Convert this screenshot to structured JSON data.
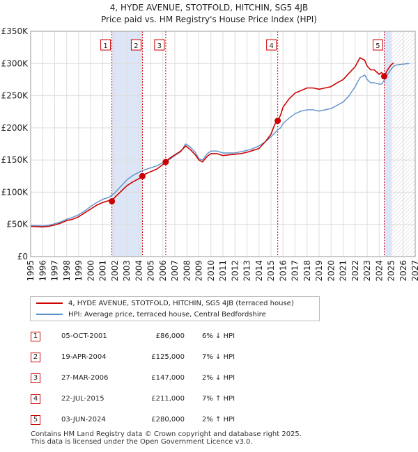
{
  "title_line1": "4, HYDE AVENUE, STOTFOLD, HITCHIN, SG5 4JB",
  "title_line2": "Price paid vs. HM Registry's House Price Index (HPI)",
  "chart_data": {
    "type": "line",
    "ylabel": "",
    "xlabel": "",
    "ylim": [
      0,
      350000
    ],
    "xlim": [
      1995,
      2027
    ],
    "y_ticks": [
      0,
      50000,
      100000,
      150000,
      200000,
      250000,
      300000,
      350000
    ],
    "y_tick_labels": [
      "£0",
      "£50K",
      "£100K",
      "£150K",
      "£200K",
      "£250K",
      "£300K",
      "£350K"
    ],
    "x_ticks": [
      1995,
      1996,
      1997,
      1998,
      1999,
      2000,
      2001,
      2002,
      2003,
      2004,
      2005,
      2006,
      2007,
      2008,
      2009,
      2010,
      2011,
      2012,
      2013,
      2014,
      2015,
      2016,
      2017,
      2018,
      2019,
      2020,
      2021,
      2022,
      2023,
      2024,
      2025,
      2026,
      2027
    ],
    "grid": true,
    "shaded_periods": [
      [
        2001.76,
        2004.3
      ],
      [
        2024.42,
        2025.0
      ]
    ],
    "forecast_start": 2025.0,
    "series": [
      {
        "name": "4, HYDE AVENUE, STOTFOLD, HITCHIN, SG5 4JB (terraced house)",
        "color": "#cc0000",
        "x": [
          1995,
          1995.5,
          1996,
          1996.5,
          1997,
          1997.5,
          1998,
          1998.5,
          1999,
          1999.5,
          2000,
          2000.5,
          2001,
          2001.5,
          2001.76,
          2002,
          2002.5,
          2003,
          2003.5,
          2004,
          2004.3,
          2004.5,
          2005,
          2005.5,
          2006,
          2006.24,
          2006.5,
          2007,
          2007.5,
          2007.9,
          2008.3,
          2008.7,
          2009,
          2009.3,
          2009.7,
          2010,
          2010.5,
          2011,
          2011.5,
          2012,
          2012.5,
          2013,
          2013.5,
          2014,
          2014.5,
          2015,
          2015.3,
          2015.56,
          2015.8,
          2016,
          2016.5,
          2017,
          2017.5,
          2018,
          2018.5,
          2019,
          2019.5,
          2020,
          2020.5,
          2021,
          2021.5,
          2022,
          2022.4,
          2022.8,
          2023,
          2023.3,
          2023.6,
          2024,
          2024.2,
          2024.42,
          2024.7,
          2025,
          2025.2
        ],
        "values": [
          47000,
          46500,
          46000,
          47000,
          49000,
          52000,
          56000,
          58000,
          62000,
          68000,
          74000,
          80000,
          84000,
          87000,
          86000,
          92000,
          101000,
          110000,
          116000,
          121000,
          125000,
          128000,
          132000,
          136000,
          143000,
          147000,
          152000,
          158000,
          164000,
          172000,
          166000,
          158000,
          150000,
          147000,
          156000,
          160000,
          160000,
          157000,
          158000,
          159000,
          160000,
          162000,
          165000,
          168000,
          178000,
          190000,
          205000,
          211000,
          220000,
          232000,
          245000,
          254000,
          258000,
          262000,
          262000,
          260000,
          262000,
          264000,
          270000,
          275000,
          285000,
          295000,
          309000,
          305000,
          296000,
          290000,
          290000,
          283000,
          286000,
          280000,
          290000,
          298000,
          301000
        ]
      },
      {
        "name": "HPI: Average price, terraced house, Central Bedfordshire",
        "color": "#5b8fc7",
        "x": [
          1995,
          1995.5,
          1996,
          1996.5,
          1997,
          1997.5,
          1998,
          1998.5,
          1999,
          1999.5,
          2000,
          2000.5,
          2001,
          2001.5,
          2002,
          2002.5,
          2003,
          2003.5,
          2004,
          2004.5,
          2005,
          2005.5,
          2006,
          2006.5,
          2007,
          2007.5,
          2007.9,
          2008.3,
          2008.7,
          2009,
          2009.3,
          2009.7,
          2010,
          2010.5,
          2011,
          2011.5,
          2012,
          2012.5,
          2013,
          2013.5,
          2014,
          2014.5,
          2015,
          2015.3,
          2015.56,
          2015.8,
          2016,
          2016.5,
          2017,
          2017.5,
          2018,
          2018.5,
          2019,
          2019.5,
          2020,
          2020.5,
          2021,
          2021.5,
          2022,
          2022.4,
          2022.8,
          2023,
          2023.3,
          2023.6,
          2024,
          2024.2,
          2024.42,
          2024.7,
          2025,
          2025.2,
          2025.5,
          2026,
          2026.5
        ],
        "values": [
          48000,
          48000,
          47500,
          48500,
          51000,
          54000,
          58000,
          61000,
          65000,
          71000,
          78000,
          84000,
          89000,
          92000,
          99000,
          109000,
          119000,
          126000,
          131000,
          135000,
          138000,
          141000,
          146000,
          150000,
          157000,
          163000,
          175000,
          170000,
          162000,
          152000,
          150000,
          160000,
          164000,
          164000,
          161000,
          161000,
          161000,
          163000,
          165000,
          168000,
          172000,
          178000,
          186000,
          192000,
          197000,
          200000,
          207000,
          215000,
          222000,
          226000,
          228000,
          228000,
          226000,
          228000,
          230000,
          235000,
          240000,
          250000,
          264000,
          278000,
          282000,
          275000,
          270000,
          270000,
          268000,
          268000,
          274000,
          283000,
          291000,
          296000,
          298000,
          299000,
          300000
        ]
      }
    ],
    "sales": [
      {
        "num": "1",
        "date": "05-OCT-2001",
        "x": 2001.76,
        "price": 86000,
        "price_label": "£86,000",
        "hpi": "6% ↓ HPI"
      },
      {
        "num": "2",
        "date": "19-APR-2004",
        "x": 2004.3,
        "price": 125000,
        "price_label": "£125,000",
        "hpi": "7% ↓ HPI"
      },
      {
        "num": "3",
        "date": "27-MAR-2006",
        "x": 2006.24,
        "price": 147000,
        "price_label": "£147,000",
        "hpi": "2% ↓ HPI"
      },
      {
        "num": "4",
        "date": "22-JUL-2015",
        "x": 2015.56,
        "price": 211000,
        "price_label": "£211,000",
        "hpi": "7% ↑ HPI"
      },
      {
        "num": "5",
        "date": "03-JUN-2024",
        "x": 2024.42,
        "price": 280000,
        "price_label": "£280,000",
        "hpi": "2% ↑ HPI"
      }
    ]
  },
  "legend": {
    "property": "4, HYDE AVENUE, STOTFOLD, HITCHIN, SG5 4JB (terraced house)",
    "hpi": "HPI: Average price, terraced house, Central Bedfordshire"
  },
  "footer": {
    "line1": "Contains HM Land Registry data © Crown copyright and database right 2025.",
    "line2": "This data is licensed under the Open Government Licence v3.0."
  },
  "colors": {
    "property": "#cc0000",
    "hpi": "#5b8fc7",
    "shade": "#dde6f7",
    "grid": "#dddddd"
  }
}
